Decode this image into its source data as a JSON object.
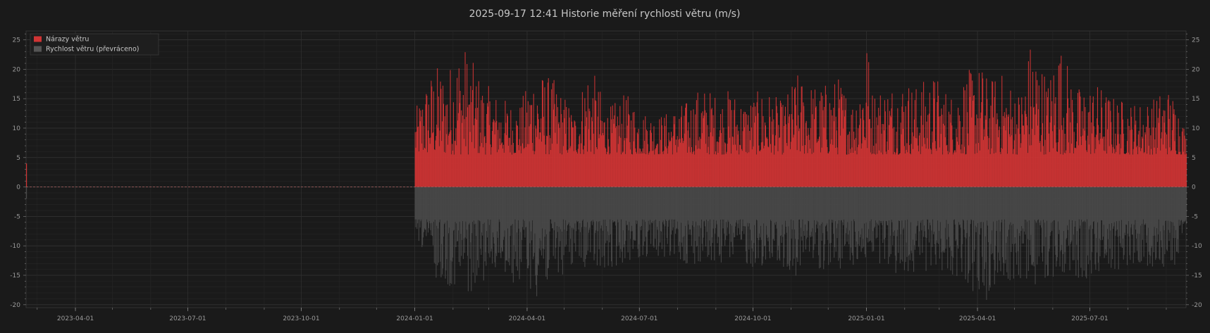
{
  "chart_data": {
    "type": "bar",
    "title": "2025-09-17  12:41  Historie měření rychlosti větru (m/s)",
    "xlabel": "",
    "ylabel": "",
    "x_type": "date",
    "xlim": [
      "2023-02-20",
      "2025-09-17"
    ],
    "ylim": [
      -20.5,
      26.5
    ],
    "y_ticks": [
      -20,
      -15,
      -10,
      -5,
      0,
      5,
      10,
      15,
      20,
      25
    ],
    "x_ticks": [
      "2023-04-01",
      "2023-07-01",
      "2023-10-01",
      "2024-01-01",
      "2024-04-01",
      "2024-07-01",
      "2024-10-01",
      "2025-01-01",
      "2025-04-01",
      "2025-07-01"
    ],
    "grid": true,
    "legend": {
      "position": "top-left"
    },
    "series": [
      {
        "name": "Nárazy větru",
        "color": "#d03434",
        "direction": "up",
        "points": [
          [
            "2023-02-20",
            4.0
          ],
          [
            "2024-01-01",
            13.0
          ],
          [
            "2024-01-12",
            19.5
          ],
          [
            "2024-01-20",
            21.0
          ],
          [
            "2024-01-28",
            20.5
          ],
          [
            "2024-02-05",
            24.5
          ],
          [
            "2024-02-09",
            25.0
          ],
          [
            "2024-02-15",
            22.0
          ],
          [
            "2024-02-25",
            18.0
          ],
          [
            "2024-03-10",
            15.5
          ],
          [
            "2024-03-25",
            14.0
          ],
          [
            "2024-04-01",
            17.5
          ],
          [
            "2024-04-05",
            21.5
          ],
          [
            "2024-04-10",
            20.0
          ],
          [
            "2024-04-22",
            18.5
          ],
          [
            "2024-05-10",
            13.0
          ],
          [
            "2024-05-20",
            22.0
          ],
          [
            "2024-06-05",
            13.5
          ],
          [
            "2024-06-20",
            16.0
          ],
          [
            "2024-07-05",
            13.0
          ],
          [
            "2024-07-20",
            12.5
          ],
          [
            "2024-08-10",
            15.0
          ],
          [
            "2024-08-20",
            17.5
          ],
          [
            "2024-09-05",
            15.5
          ],
          [
            "2024-09-12",
            17.0
          ],
          [
            "2024-09-25",
            15.0
          ],
          [
            "2024-10-10",
            17.0
          ],
          [
            "2024-10-25",
            14.5
          ],
          [
            "2024-11-05",
            19.5
          ],
          [
            "2024-11-15",
            18.0
          ],
          [
            "2024-11-25",
            17.5
          ],
          [
            "2024-12-10",
            19.0
          ],
          [
            "2024-12-20",
            15.0
          ],
          [
            "2025-01-01",
            26.5
          ],
          [
            "2025-01-05",
            17.0
          ],
          [
            "2025-01-20",
            18.0
          ],
          [
            "2025-02-01",
            19.0
          ],
          [
            "2025-02-10",
            17.5
          ],
          [
            "2025-02-25",
            19.5
          ],
          [
            "2025-03-10",
            16.0
          ],
          [
            "2025-03-20",
            19.5
          ],
          [
            "2025-04-05",
            21.0
          ],
          [
            "2025-04-10",
            18.0
          ],
          [
            "2025-04-18",
            20.0
          ],
          [
            "2025-05-05",
            16.5
          ],
          [
            "2025-05-15",
            26.5
          ],
          [
            "2025-05-28",
            18.5
          ],
          [
            "2025-06-05",
            26.0
          ],
          [
            "2025-06-20",
            17.0
          ],
          [
            "2025-07-05",
            18.0
          ],
          [
            "2025-07-20",
            15.5
          ],
          [
            "2025-08-05",
            14.5
          ],
          [
            "2025-08-20",
            15.0
          ],
          [
            "2025-09-01",
            17.5
          ],
          [
            "2025-09-10",
            15.0
          ],
          [
            "2025-09-17",
            9.0
          ]
        ]
      },
      {
        "name": "Rychlost větru (převráceno)",
        "color": "#4a4a4a",
        "direction": "down",
        "points": [
          [
            "2023-02-20",
            -2.0
          ],
          [
            "2024-01-01",
            -8.0
          ],
          [
            "2024-01-10",
            -12.5
          ],
          [
            "2024-01-20",
            -16.5
          ],
          [
            "2024-02-01",
            -17.0
          ],
          [
            "2024-02-07",
            -20.0
          ],
          [
            "2024-02-15",
            -18.0
          ],
          [
            "2024-03-01",
            -15.0
          ],
          [
            "2024-03-15",
            -16.0
          ],
          [
            "2024-04-01",
            -17.0
          ],
          [
            "2024-04-10",
            -19.0
          ],
          [
            "2024-04-20",
            -17.0
          ],
          [
            "2024-05-10",
            -13.0
          ],
          [
            "2024-06-01",
            -15.5
          ],
          [
            "2024-06-20",
            -12.5
          ],
          [
            "2024-07-15",
            -12.0
          ],
          [
            "2024-08-10",
            -13.5
          ],
          [
            "2024-09-05",
            -13.0
          ],
          [
            "2024-10-05",
            -14.0
          ],
          [
            "2024-11-05",
            -15.5
          ],
          [
            "2024-11-20",
            -14.0
          ],
          [
            "2024-12-10",
            -14.0
          ],
          [
            "2025-01-01",
            -13.5
          ],
          [
            "2025-01-20",
            -15.0
          ],
          [
            "2025-02-10",
            -14.5
          ],
          [
            "2025-03-01",
            -14.0
          ],
          [
            "2025-03-20",
            -16.0
          ],
          [
            "2025-04-05",
            -20.0
          ],
          [
            "2025-04-20",
            -16.0
          ],
          [
            "2025-05-10",
            -17.5
          ],
          [
            "2025-05-25",
            -16.0
          ],
          [
            "2025-06-10",
            -15.0
          ],
          [
            "2025-06-25",
            -16.0
          ],
          [
            "2025-07-10",
            -14.5
          ],
          [
            "2025-07-25",
            -14.0
          ],
          [
            "2025-08-10",
            -13.0
          ],
          [
            "2025-08-25",
            -14.0
          ],
          [
            "2025-09-10",
            -13.5
          ],
          [
            "2025-09-17",
            -7.0
          ]
        ]
      }
    ]
  }
}
